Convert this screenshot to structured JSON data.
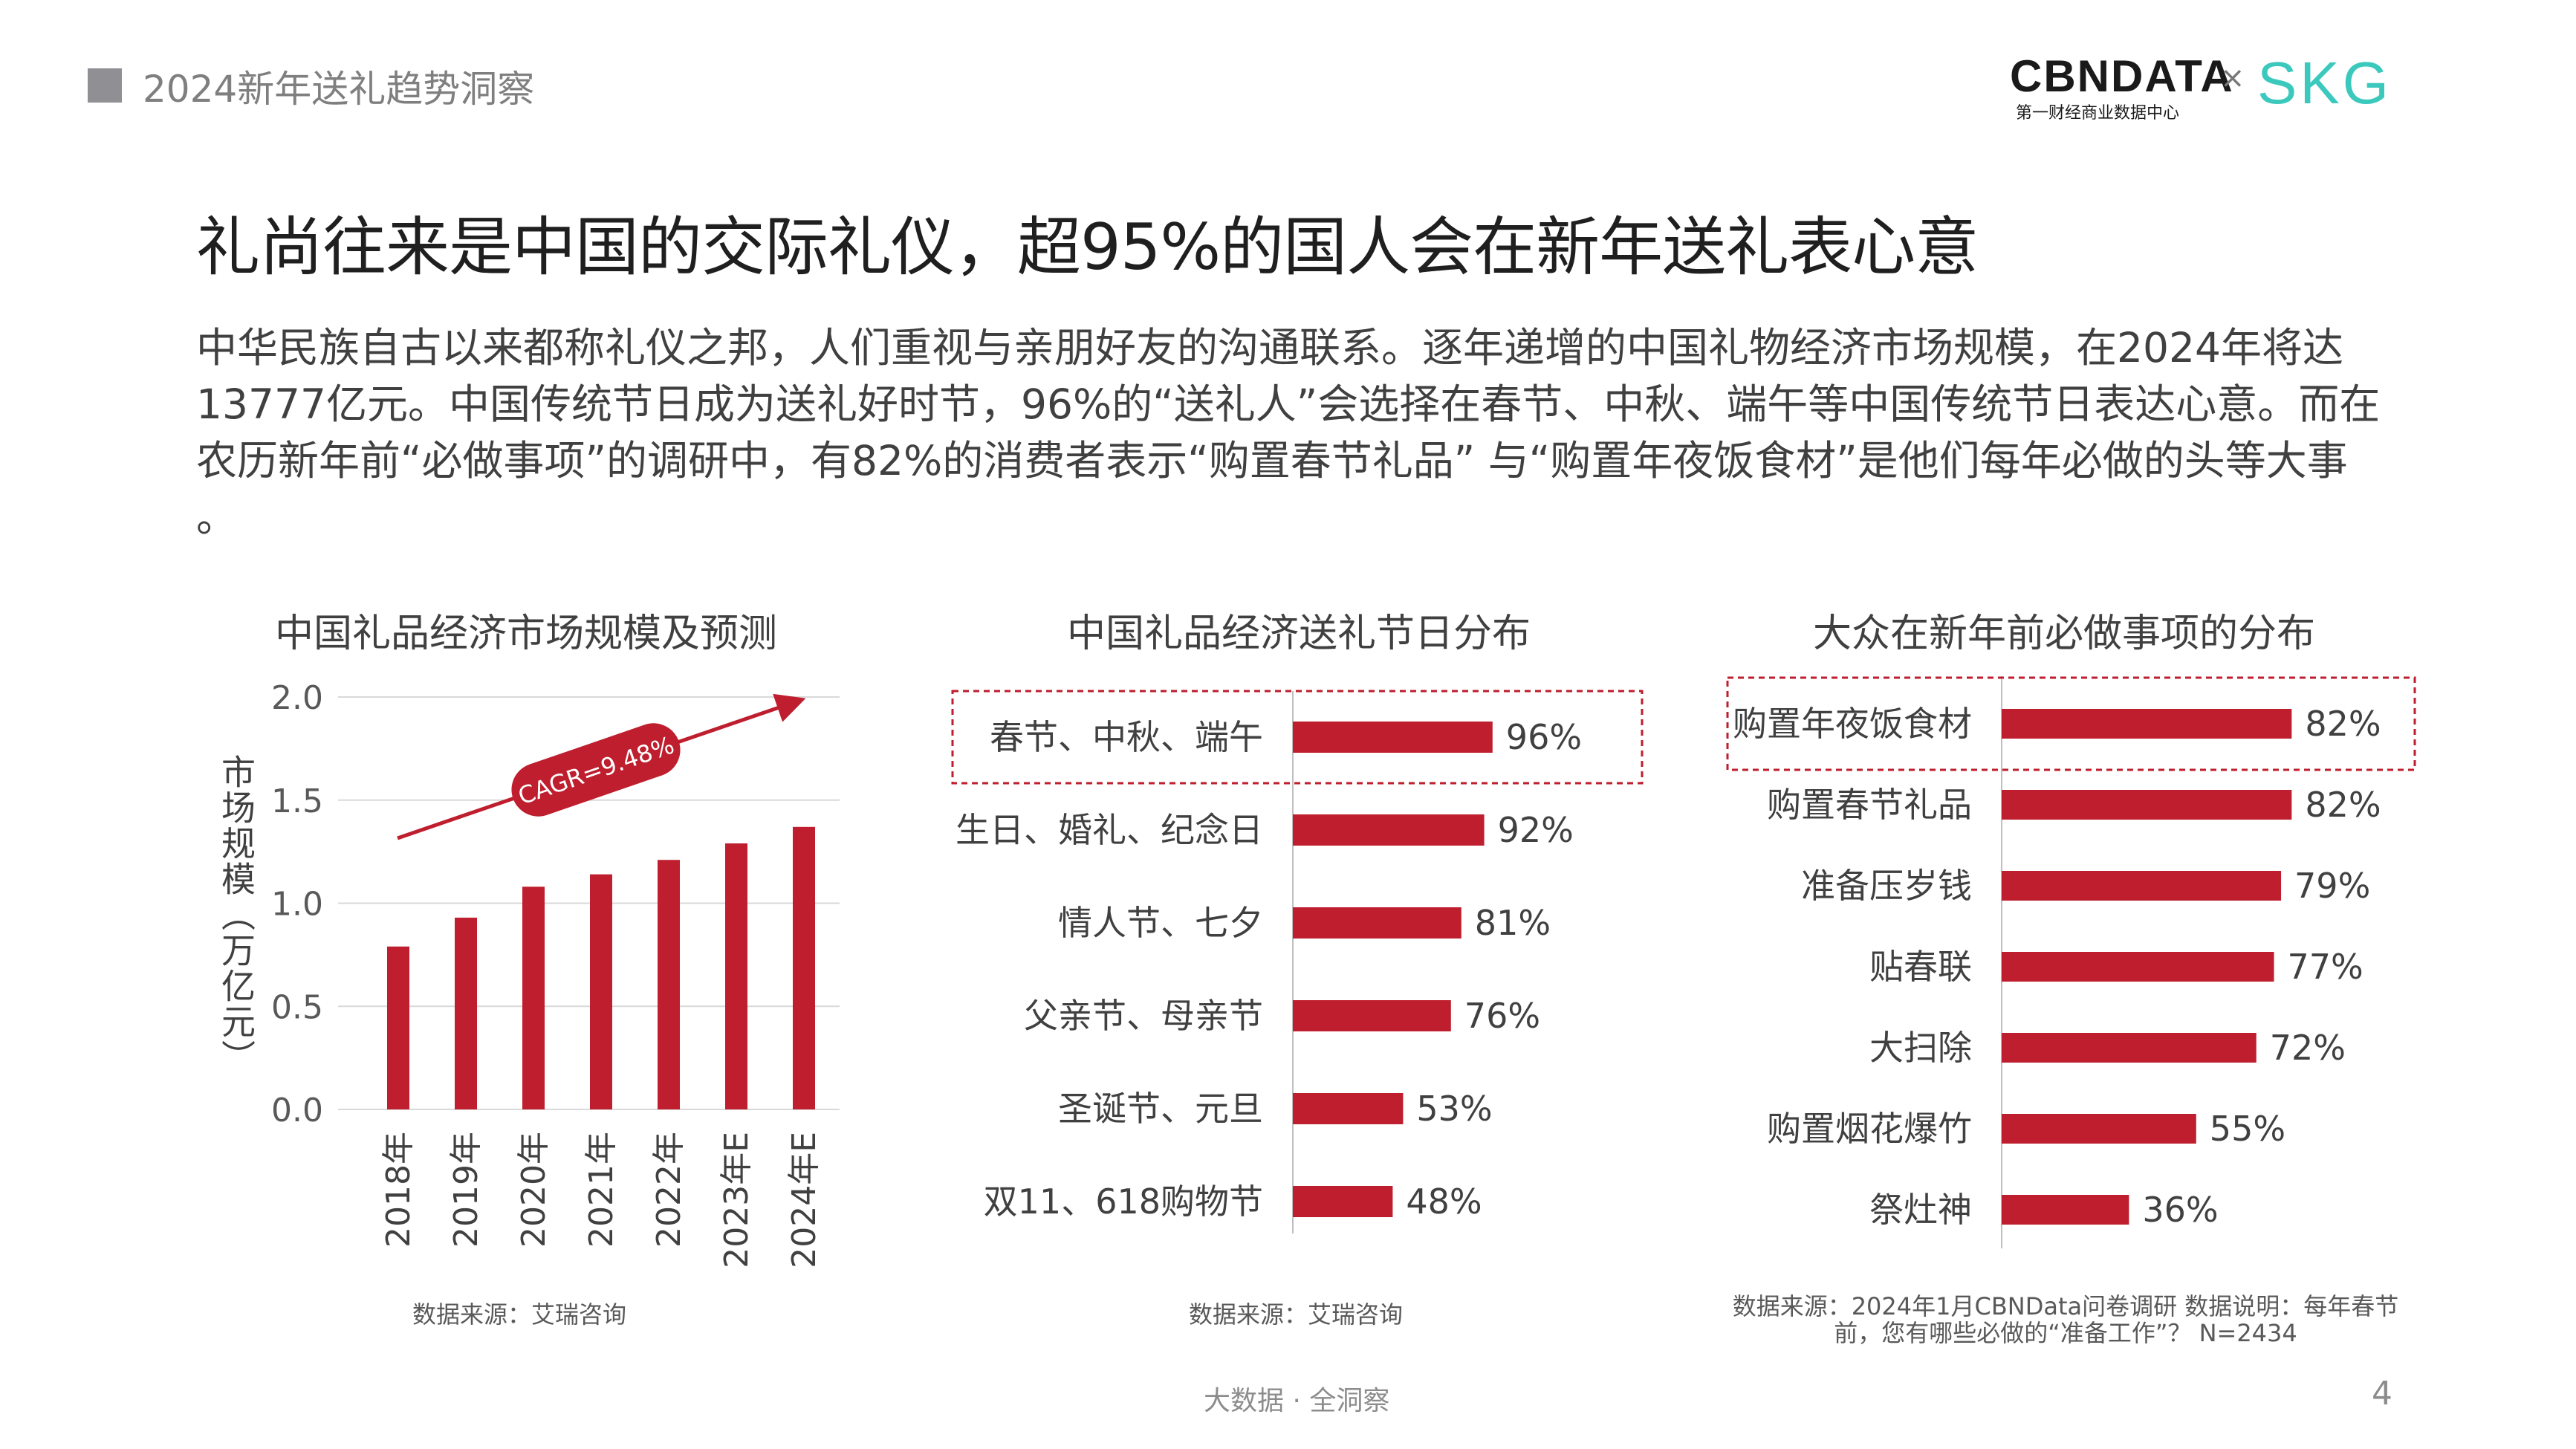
{
  "header": {
    "text": "2024新年送礼趋势洞察"
  },
  "logos": {
    "cbndata": "CBNDATA",
    "cbndata_sub": "第一财经商业数据中心",
    "times": "×",
    "skg": "SKG"
  },
  "title": "礼尚往来是中国的交际礼仪，超95%的国人会在新年送礼表心意",
  "paragraph": "中华民族自古以来都称礼仪之邦，人们重视与亲朋好友的沟通联系。逐年递增的中国礼物经济市场规模，在2024年将达13777亿元。中国传统节日成为送礼好时节，96%的“送礼人”会选择在春节、中秋、端午等中国传统节日表达心意。而在农历新年前“必做事项”的调研中，有82%的消费者表示“购置春节礼品” 与“购置年夜饭食材”是他们每年必做的头等大事 。",
  "colors": {
    "bar": "#be1e2d",
    "highlight_border": "#be1e2d",
    "grid": "#d9d9d9",
    "axis": "#bfbfbf"
  },
  "chart_data": [
    {
      "type": "bar",
      "title": "中国礼品经济市场规模及预测",
      "categories": [
        "2018年",
        "2019年",
        "2020年",
        "2021年",
        "2022年",
        "2023年E",
        "2024年E"
      ],
      "values": [
        0.79,
        0.93,
        1.08,
        1.14,
        1.21,
        1.29,
        1.37
      ],
      "ylabel": "市场规模（万亿元）",
      "ylim": [
        0,
        2.0
      ],
      "yticks": [
        "0.0",
        "0.5",
        "1.0",
        "1.5",
        "2.0"
      ],
      "annotation": "CAGR=9.48%",
      "grid": true,
      "source": "数据来源：艾瑞咨询"
    },
    {
      "type": "bar",
      "orientation": "horizontal",
      "title": "中国礼品经济送礼节日分布",
      "categories": [
        "春节、中秋、端午",
        "生日、婚礼、纪念日",
        "情人节、七夕",
        "父亲节、母亲节",
        "圣诞节、元旦",
        "双11、618购物节"
      ],
      "values": [
        96,
        92,
        81,
        76,
        53,
        48
      ],
      "labels": [
        "96%",
        "92%",
        "81%",
        "76%",
        "53%",
        "48%"
      ],
      "highlight": 0,
      "source": "数据来源：艾瑞咨询"
    },
    {
      "type": "bar",
      "orientation": "horizontal",
      "title": "大众在新年前必做事项的分布",
      "categories": [
        "购置年夜饭食材",
        "购置春节礼品",
        "准备压岁钱",
        "贴春联",
        "大扫除",
        "购置烟花爆竹",
        "祭灶神"
      ],
      "values": [
        82,
        82,
        79,
        77,
        72,
        55,
        36
      ],
      "labels": [
        "82%",
        "82%",
        "79%",
        "77%",
        "72%",
        "55%",
        "36%"
      ],
      "highlight": 0,
      "source": "数据来源：2024年1月CBNData问卷调研 数据说明：每年春节前，您有哪些必做的“准备工作”？ N=2434"
    }
  ],
  "footer": "大数据 · 全洞察",
  "page_number": "4"
}
